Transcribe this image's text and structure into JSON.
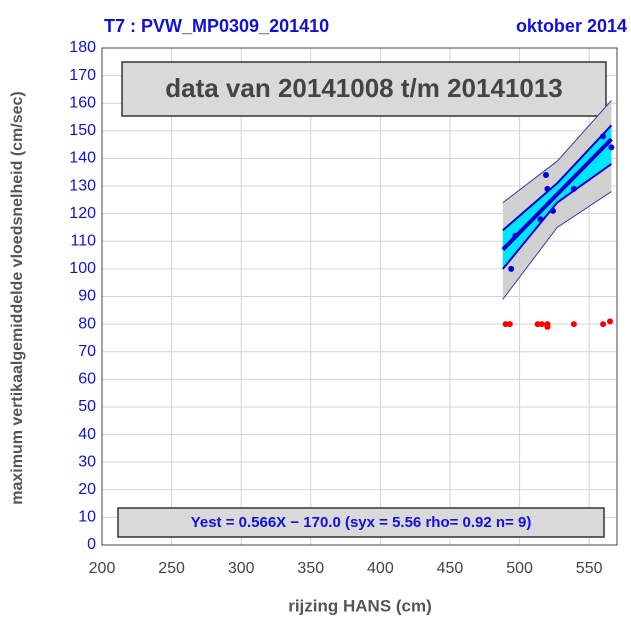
{
  "chart_data": {
    "type": "scatter",
    "title": "T7 : PVW_MP0309_201410",
    "subtitle": "oktober 2014",
    "annotation": "data van 20141008 t/m 20141013",
    "equation": "Yest = 0.566X − 170.0 (syx = 5.56 rho= 0.92 n= 9)",
    "xlabel": "rijzing HANS (cm)",
    "ylabel": "maximum vertikaalgemiddelde vloedsnelheid (cm/sec)",
    "xlim": [
      200,
      570
    ],
    "xticks": [
      200,
      250,
      300,
      350,
      400,
      450,
      500,
      550
    ],
    "ylim": [
      0,
      180
    ],
    "yticks": [
      0,
      10,
      20,
      30,
      40,
      50,
      60,
      70,
      80,
      90,
      100,
      110,
      120,
      130,
      140,
      150,
      160,
      170,
      180
    ],
    "grid": true,
    "series": [
      {
        "color": "#0000dd",
        "x": [
          494,
          497,
          515,
          519,
          524,
          520,
          539,
          560,
          566
        ],
        "values": [
          100,
          112,
          118,
          134,
          121,
          129,
          129,
          148,
          144
        ]
      },
      {
        "color": "#ff0000",
        "x": [
          490,
          493,
          513,
          516,
          520,
          520,
          539,
          560,
          565
        ],
        "values": [
          80,
          80,
          80,
          80,
          79,
          80,
          80,
          80,
          81
        ]
      }
    ],
    "fit": {
      "color": "#0000cc",
      "x": [
        488,
        566
      ],
      "values": [
        107,
        147
      ]
    },
    "bands": [
      {
        "color": "#d0d0d0",
        "x": [
          488,
          527,
          566
        ],
        "lower": [
          89,
          115,
          128
        ],
        "upper": [
          124,
          139,
          161
        ]
      },
      {
        "color": "#00e5ff",
        "x": [
          488,
          527,
          566
        ],
        "lower": [
          100,
          124,
          138
        ],
        "upper": [
          114,
          131,
          152
        ]
      }
    ]
  }
}
